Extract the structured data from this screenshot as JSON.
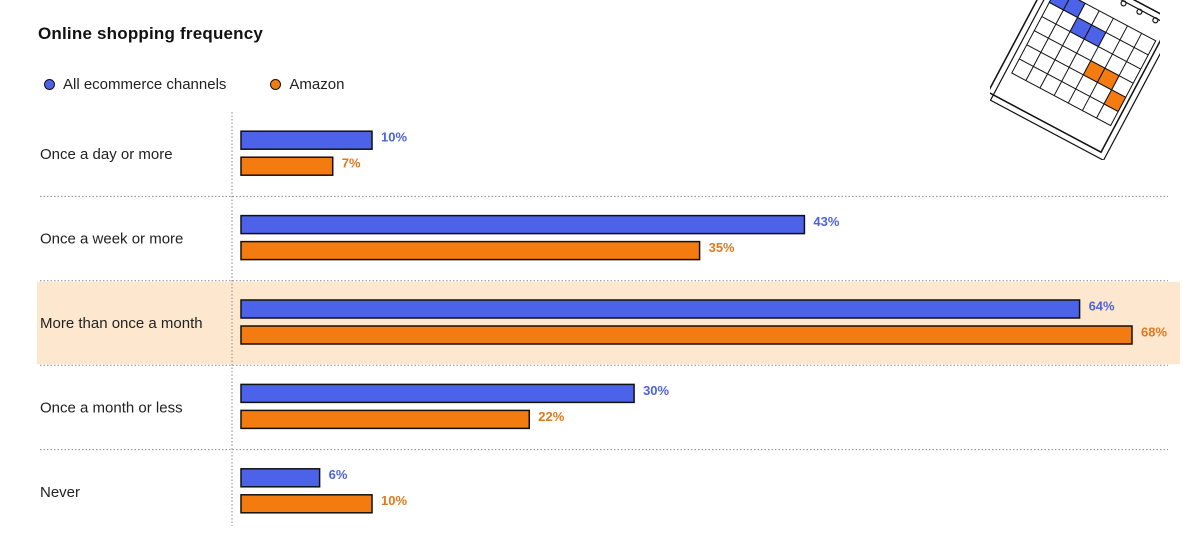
{
  "chart_data": {
    "type": "bar",
    "orientation": "horizontal",
    "title": "Online shopping frequency",
    "categories": [
      "Once a day or more",
      "Once a week or more",
      "More than once a month",
      "Once a month or less",
      "Never"
    ],
    "series": [
      {
        "name": "All ecommerce channels",
        "values": [
          10,
          43,
          64,
          30,
          6
        ],
        "labels": [
          "10%",
          "43%",
          "64%",
          "30%",
          "6%"
        ],
        "color": "#4c62e8",
        "label_color": "#4d63dd"
      },
      {
        "name": "Amazon",
        "values": [
          7,
          35,
          68,
          22,
          10
        ],
        "labels": [
          "7%",
          "35%",
          "68%",
          "22%",
          "10%"
        ],
        "color": "#f47b0f",
        "label_color": "#e2781e"
      }
    ],
    "xlim": [
      0,
      68
    ],
    "value_unit": "%",
    "highlighted_category": "More than once a month",
    "highlight_color": "#fde7cf",
    "legend_position": "top-left",
    "grid": false
  }
}
